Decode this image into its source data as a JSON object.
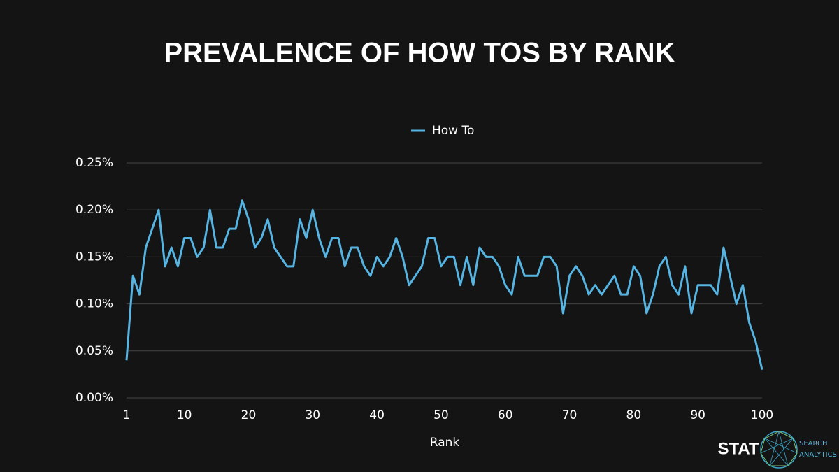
{
  "chart_data": {
    "type": "line",
    "title": "PREVALENCE OF HOW TOS BY RANK",
    "x_label": "Rank",
    "x": [
      1,
      2,
      3,
      4,
      5,
      6,
      7,
      8,
      9,
      10,
      11,
      12,
      13,
      14,
      15,
      16,
      17,
      18,
      19,
      20,
      21,
      22,
      23,
      24,
      25,
      26,
      27,
      28,
      29,
      30,
      31,
      32,
      33,
      34,
      35,
      36,
      37,
      38,
      39,
      40,
      41,
      42,
      43,
      44,
      45,
      46,
      47,
      48,
      49,
      50,
      51,
      52,
      53,
      54,
      55,
      56,
      57,
      58,
      59,
      60,
      61,
      62,
      63,
      64,
      65,
      66,
      67,
      68,
      69,
      70,
      71,
      72,
      73,
      74,
      75,
      76,
      77,
      78,
      79,
      80,
      81,
      82,
      83,
      84,
      85,
      86,
      87,
      88,
      89,
      90,
      91,
      92,
      93,
      94,
      95,
      96,
      97,
      98,
      99,
      100
    ],
    "series": [
      {
        "name": "How To",
        "color": "#56b4e3",
        "values": [
          0.04,
          0.13,
          0.11,
          0.16,
          0.18,
          0.2,
          0.14,
          0.16,
          0.14,
          0.17,
          0.17,
          0.15,
          0.16,
          0.2,
          0.16,
          0.16,
          0.18,
          0.18,
          0.21,
          0.19,
          0.16,
          0.17,
          0.19,
          0.16,
          0.15,
          0.14,
          0.14,
          0.19,
          0.17,
          0.2,
          0.17,
          0.15,
          0.17,
          0.17,
          0.14,
          0.16,
          0.16,
          0.14,
          0.13,
          0.15,
          0.14,
          0.15,
          0.17,
          0.15,
          0.12,
          0.13,
          0.14,
          0.17,
          0.17,
          0.14,
          0.15,
          0.15,
          0.12,
          0.15,
          0.12,
          0.16,
          0.15,
          0.15,
          0.14,
          0.12,
          0.11,
          0.15,
          0.13,
          0.13,
          0.13,
          0.15,
          0.15,
          0.14,
          0.09,
          0.13,
          0.14,
          0.13,
          0.11,
          0.12,
          0.11,
          0.12,
          0.13,
          0.11,
          0.11,
          0.14,
          0.13,
          0.09,
          0.11,
          0.14,
          0.15,
          0.12,
          0.11,
          0.14,
          0.09,
          0.12,
          0.12,
          0.12,
          0.11,
          0.16,
          0.13,
          0.1,
          0.12,
          0.08,
          0.06,
          0.03
        ]
      }
    ],
    "xlim": [
      1,
      100
    ],
    "xticks": [
      1,
      10,
      20,
      30,
      40,
      50,
      60,
      70,
      80,
      90,
      100
    ],
    "ylim": [
      0,
      0.25
    ],
    "yticks": [
      {
        "value": 0,
        "label": "0.00%"
      },
      {
        "value": 0.05,
        "label": "0.05%"
      },
      {
        "value": 0.1,
        "label": "0.10%"
      },
      {
        "value": 0.15,
        "label": "0.15%"
      },
      {
        "value": 0.2,
        "label": "0.20%"
      },
      {
        "value": 0.25,
        "label": "0.25%"
      }
    ],
    "grid": true,
    "legend": "top"
  },
  "logo": {
    "brand": "STAT",
    "tagline": [
      "SEARCH",
      "ANALYTICS"
    ]
  }
}
